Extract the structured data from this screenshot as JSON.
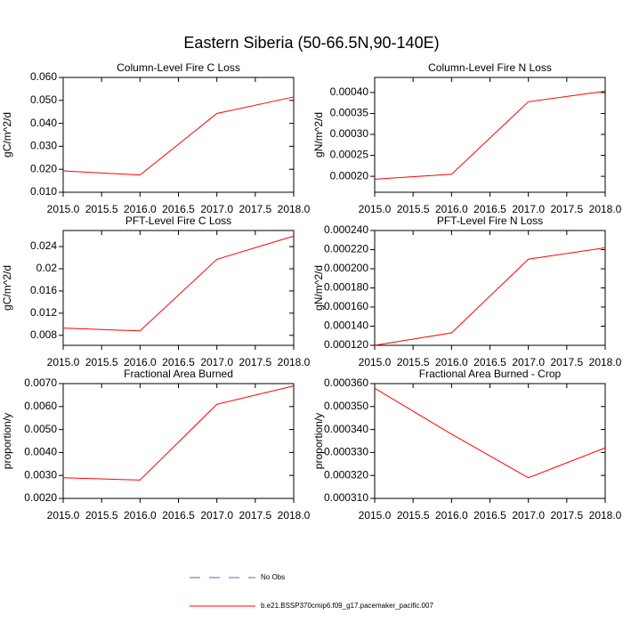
{
  "title": "Eastern Siberia (50-66.5N,90-140E)",
  "legend": [
    {
      "name": "No Obs",
      "color": "#6a5acd",
      "style": "dashed"
    },
    {
      "name": "b.e21.BSSP370cmip6.f09_g17.pacemaker_pacific.007",
      "color": "#ff0000",
      "style": "solid"
    }
  ],
  "chart_data": [
    {
      "type": "line",
      "title": "Column-Level Fire C Loss",
      "y_label": "gC/m^2/d",
      "x": [
        2015,
        2016,
        2017,
        2018
      ],
      "series": [
        {
          "color": "#ff0000",
          "values": [
            0.0193,
            0.0175,
            0.0443,
            0.0515
          ]
        }
      ],
      "xlim": [
        2015,
        2018
      ],
      "xticks": [
        {
          "value": 2015,
          "label": "2015.0"
        },
        {
          "value": 2015.5,
          "label": "2015.5"
        },
        {
          "value": 2016,
          "label": "2016.0"
        },
        {
          "value": 2016.5,
          "label": "2016.5"
        },
        {
          "value": 2017,
          "label": "2017.0"
        },
        {
          "value": 2017.5,
          "label": "2017.5"
        },
        {
          "value": 2018,
          "label": "2018.0"
        }
      ],
      "ylim": [
        0.01,
        0.06
      ],
      "yticks": [
        {
          "value": 0.01,
          "label": "0.010"
        },
        {
          "value": 0.02,
          "label": "0.020"
        },
        {
          "value": 0.03,
          "label": "0.030"
        },
        {
          "value": 0.04,
          "label": "0.040"
        },
        {
          "value": 0.05,
          "label": "0.050"
        },
        {
          "value": 0.06,
          "label": "0.060"
        }
      ]
    },
    {
      "type": "line",
      "title": "Column-Level Fire N Loss",
      "y_label": "gN/m^2/d",
      "x": [
        2015,
        2016,
        2017,
        2018
      ],
      "series": [
        {
          "color": "#ff0000",
          "values": [
            0.000193,
            0.000205,
            0.000378,
            0.000403
          ]
        }
      ],
      "xlim": [
        2015,
        2018
      ],
      "xticks": [
        {
          "value": 2015,
          "label": "2015.0"
        },
        {
          "value": 2015.5,
          "label": "2015.5"
        },
        {
          "value": 2016,
          "label": "2016.0"
        },
        {
          "value": 2016.5,
          "label": "2016.5"
        },
        {
          "value": 2017,
          "label": "2017.0"
        },
        {
          "value": 2017.5,
          "label": "2017.5"
        },
        {
          "value": 2018,
          "label": "2018.0"
        }
      ],
      "ylim": [
        0.000162,
        0.000436
      ],
      "yticks": [
        {
          "value": 0.0002,
          "label": "0.00020"
        },
        {
          "value": 0.00025,
          "label": "0.00025"
        },
        {
          "value": 0.0003,
          "label": "0.00030"
        },
        {
          "value": 0.00035,
          "label": "0.00035"
        },
        {
          "value": 0.0004,
          "label": "0.00040"
        }
      ]
    },
    {
      "type": "line",
      "title": "PFT-Level Fire C Loss",
      "y_label": "gC/m^2/d",
      "x": [
        2015,
        2016,
        2017,
        2018
      ],
      "series": [
        {
          "color": "#ff0000",
          "values": [
            0.0093,
            0.0088,
            0.0217,
            0.0259
          ]
        }
      ],
      "xlim": [
        2015,
        2018
      ],
      "xticks": [
        {
          "value": 2015,
          "label": "2015.0"
        },
        {
          "value": 2015.5,
          "label": "2015.5"
        },
        {
          "value": 2016,
          "label": "2016.0"
        },
        {
          "value": 2016.5,
          "label": "2016.5"
        },
        {
          "value": 2017,
          "label": "2017.0"
        },
        {
          "value": 2017.5,
          "label": "2017.5"
        },
        {
          "value": 2018,
          "label": "2018.0"
        }
      ],
      "ylim": [
        0.0062,
        0.0269
      ],
      "yticks": [
        0.008,
        0.012,
        0.016,
        0.02,
        0.024
      ]
    },
    {
      "type": "line",
      "title": "PFT-Level Fire N Loss",
      "y_label": "gN/m^2/d",
      "x": [
        2015,
        2016,
        2017,
        2018
      ],
      "series": [
        {
          "color": "#ff0000",
          "values": [
            0.00012,
            0.000133,
            0.00021,
            0.000222
          ]
        }
      ],
      "xlim": [
        2015,
        2018
      ],
      "xticks": [
        {
          "value": 2015,
          "label": "2015.0"
        },
        {
          "value": 2015.5,
          "label": "2015.5"
        },
        {
          "value": 2016,
          "label": "2016.0"
        },
        {
          "value": 2016.5,
          "label": "2016.5"
        },
        {
          "value": 2017,
          "label": "2017.0"
        },
        {
          "value": 2017.5,
          "label": "2017.5"
        },
        {
          "value": 2018,
          "label": "2018.0"
        }
      ],
      "ylim": [
        0.00012,
        0.00024
      ],
      "yticks": [
        {
          "value": 0.00012,
          "label": "0.000120"
        },
        {
          "value": 0.00014,
          "label": "0.000140"
        },
        {
          "value": 0.00016,
          "label": "0.000160"
        },
        {
          "value": 0.00018,
          "label": "0.000180"
        },
        {
          "value": 0.0002,
          "label": "0.000200"
        },
        {
          "value": 0.00022,
          "label": "0.000220"
        },
        {
          "value": 0.00024,
          "label": "0.000240"
        }
      ]
    },
    {
      "type": "line",
      "title": "Fractional Area Burned",
      "y_label": "proportion/y",
      "x": [
        2015,
        2016,
        2017,
        2018
      ],
      "series": [
        {
          "color": "#ff0000",
          "values": [
            0.0029,
            0.0028,
            0.0061,
            0.0069
          ]
        }
      ],
      "xlim": [
        2015,
        2018
      ],
      "xticks": [
        {
          "value": 2015,
          "label": "2015.0"
        },
        {
          "value": 2015.5,
          "label": "2015.5"
        },
        {
          "value": 2016,
          "label": "2016.0"
        },
        {
          "value": 2016.5,
          "label": "2016.5"
        },
        {
          "value": 2017,
          "label": "2017.0"
        },
        {
          "value": 2017.5,
          "label": "2017.5"
        },
        {
          "value": 2018,
          "label": "2018.0"
        }
      ],
      "ylim": [
        0.002,
        0.007
      ],
      "yticks": [
        {
          "value": 0.002,
          "label": "0.0020"
        },
        {
          "value": 0.003,
          "label": "0.0030"
        },
        {
          "value": 0.004,
          "label": "0.0040"
        },
        {
          "value": 0.005,
          "label": "0.0050"
        },
        {
          "value": 0.006,
          "label": "0.0060"
        },
        {
          "value": 0.007,
          "label": "0.0070"
        }
      ]
    },
    {
      "type": "line",
      "title": "Fractional Area Burned - Crop",
      "y_label": "proportion/y",
      "x": [
        2015,
        2016,
        2017,
        2018
      ],
      "series": [
        {
          "color": "#ff0000",
          "values": [
            0.000358,
            0.000338,
            0.000319,
            0.000332
          ]
        }
      ],
      "xlim": [
        2015,
        2018
      ],
      "xticks": [
        {
          "value": 2015,
          "label": "2015.0"
        },
        {
          "value": 2015.5,
          "label": "2015.5"
        },
        {
          "value": 2016,
          "label": "2016.0"
        },
        {
          "value": 2016.5,
          "label": "2016.5"
        },
        {
          "value": 2017,
          "label": "2017.0"
        },
        {
          "value": 2017.5,
          "label": "2017.5"
        },
        {
          "value": 2018,
          "label": "2018.0"
        }
      ],
      "ylim": [
        0.00031,
        0.00036
      ],
      "yticks": [
        {
          "value": 0.00031,
          "label": "0.000310"
        },
        {
          "value": 0.00032,
          "label": "0.000320"
        },
        {
          "value": 0.00033,
          "label": "0.000330"
        },
        {
          "value": 0.00034,
          "label": "0.000340"
        },
        {
          "value": 0.00035,
          "label": "0.000350"
        },
        {
          "value": 0.00036,
          "label": "0.000360"
        }
      ]
    }
  ]
}
